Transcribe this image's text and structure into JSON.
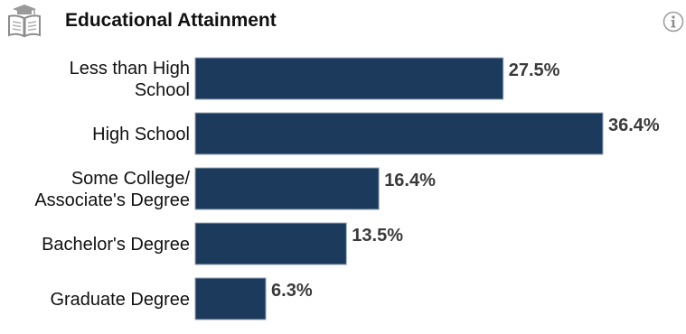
{
  "header": {
    "title": "Educational Attainment",
    "icon": "book-icon",
    "info_icon": "info-icon"
  },
  "colors": {
    "bar": "#1b3a5c",
    "bar_border": "#9aa7b5",
    "value_text": "#3a3a3a",
    "label_text": "#111111"
  },
  "chart_data": {
    "type": "bar",
    "orientation": "horizontal",
    "title": "Educational Attainment",
    "categories": [
      [
        "Less than High",
        "School"
      ],
      [
        "High School"
      ],
      [
        "Some College/",
        "Associate's Degree"
      ],
      [
        "Bachelor's Degree"
      ],
      [
        "Graduate Degree"
      ]
    ],
    "values": [
      27.5,
      36.4,
      16.4,
      13.5,
      6.3
    ],
    "value_labels": [
      "27.5%",
      "36.4%",
      "16.4%",
      "13.5%",
      "6.3%"
    ],
    "xlim": [
      0,
      36.4
    ],
    "grid": false,
    "legend": "none"
  }
}
